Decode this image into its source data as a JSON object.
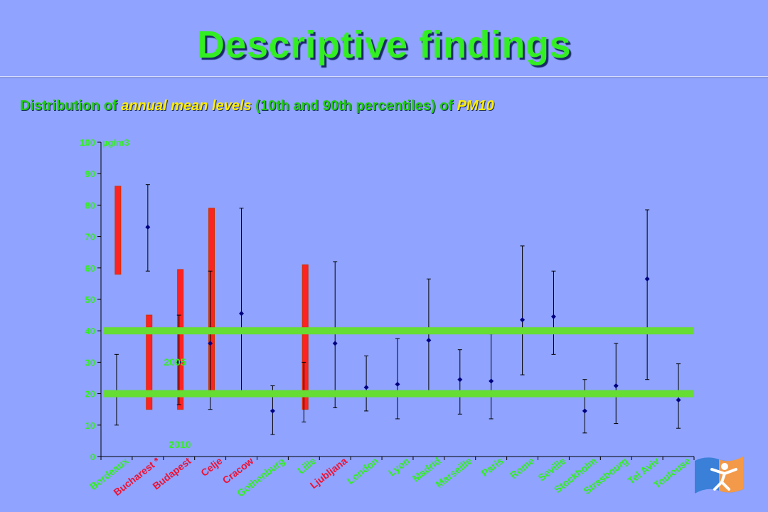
{
  "title": "Descriptive findings",
  "subtitle": {
    "part1": "Distribution of ",
    "part2": "annual mean levels",
    "part3": " (10th and 90th percentiles) of ",
    "part4": "PM10"
  },
  "chart_data": {
    "type": "errorbar",
    "unit_label": "µg/m3",
    "ylim": [
      0,
      100
    ],
    "yticks": [
      0,
      10,
      20,
      30,
      40,
      50,
      60,
      70,
      80,
      90,
      100
    ],
    "categories": [
      "Bordeaux",
      "Bucharest *",
      "Budapest",
      "Celje",
      "Cracow",
      "Gothenburg",
      "Lille",
      "Ljubljana",
      "London",
      "Lyon",
      "Madrid",
      "Marseille",
      "Paris",
      "Rome",
      "Seville",
      "Stockholm",
      "Strasbourg",
      "Tel Aviv",
      "Toulouse"
    ],
    "highlighted_categories": [
      "Bucharest *",
      "Budapest",
      "Celje",
      "Cracow",
      "Ljubljana"
    ],
    "series": [
      {
        "values": {
          "mean": [
            20.5,
            73,
            30,
            36,
            45.5,
            14.5,
            20.5,
            36,
            22,
            23,
            37,
            24.5,
            24,
            43.5,
            44.5,
            14.5,
            22.5,
            56.5,
            18
          ],
          "p10": [
            10,
            59,
            16.5,
            15,
            20.5,
            7,
            11,
            15.5,
            14.5,
            12,
            20.5,
            13.5,
            12,
            26,
            32.5,
            7.5,
            10.5,
            24.5,
            9
          ],
          "p90": [
            32.5,
            86.5,
            45,
            59,
            79,
            22.5,
            30,
            62,
            32,
            37.5,
            56.5,
            34,
            39,
            67,
            59,
            24.5,
            36,
            78.5,
            29.5
          ]
        }
      }
    ],
    "red_bars": [
      {
        "category": "Bucharest *",
        "low": 58,
        "high": 86
      },
      {
        "category": "Budapest",
        "low": 15,
        "high": 45
      },
      {
        "category": "Celje",
        "low": 15,
        "high": 59.5
      },
      {
        "category": "Cracow",
        "low": 20,
        "high": 79
      },
      {
        "category": "Ljubljana",
        "low": 15,
        "high": 61
      }
    ],
    "reference_lines": [
      {
        "value": 40,
        "label": "2005"
      },
      {
        "value": 20,
        "label": "2010"
      }
    ],
    "grid": false,
    "colors": {
      "marker": "#000080",
      "whisker": "#000000",
      "red_bar": "#ff2222",
      "reference": "#66dd33",
      "axis_text": "#33ee22",
      "highlight_label": "#ee1133",
      "background": "#8fa3ff"
    }
  }
}
